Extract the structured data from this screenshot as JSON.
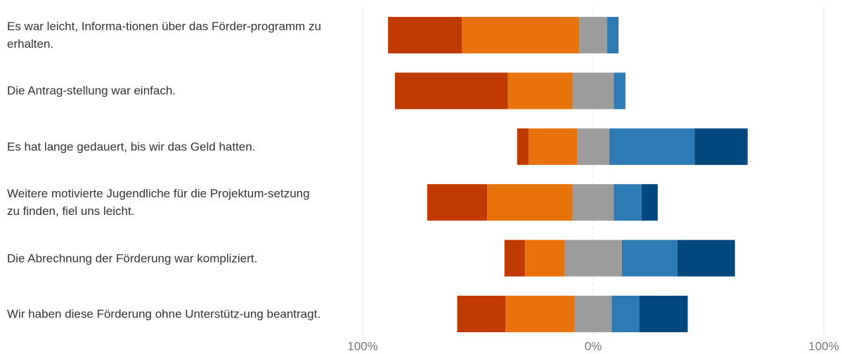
{
  "chart_data": {
    "type": "diverging-stacked-bar",
    "categories": [
      "Es war leicht, Informa-tionen über das Förder-programm zu erhalten.",
      "Die Antrag-stellung war einfach.",
      "Es hat lange gedauert, bis wir das Geld hatten.",
      "Weitere motivierte Jugendliche für die Projektum-setzung zu finden, fiel uns leicht.",
      "Die Abrechnung der Förderung war kompliziert.",
      "Wir haben diese Förderung ohne Unterstütz-ung beantragt."
    ],
    "series": [
      {
        "color": "#bf3b03",
        "values": [
          32,
          49,
          5,
          26,
          9,
          21
        ]
      },
      {
        "color": "#e8720c",
        "values": [
          51,
          28,
          21,
          37,
          17,
          30
        ]
      },
      {
        "color": "#9c9c9c",
        "values": [
          12,
          18,
          14,
          18,
          25,
          16
        ]
      },
      {
        "color": "#2e7ab5",
        "values": [
          5,
          5,
          37,
          12,
          24,
          12
        ]
      },
      {
        "color": "#03497f",
        "values": [
          0,
          0,
          23,
          7,
          25,
          21
        ]
      }
    ],
    "xlim": [
      -100,
      100
    ],
    "xticks": [
      {
        "value": -100,
        "label": "100%"
      },
      {
        "value": 0,
        "label": "0%"
      },
      {
        "value": 100,
        "label": "100%"
      }
    ],
    "grid": true
  }
}
